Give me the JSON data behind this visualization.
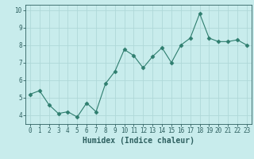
{
  "x": [
    0,
    1,
    2,
    3,
    4,
    5,
    6,
    7,
    8,
    9,
    10,
    11,
    12,
    13,
    14,
    15,
    16,
    17,
    18,
    19,
    20,
    21,
    22,
    23
  ],
  "y": [
    5.2,
    5.4,
    4.6,
    4.1,
    4.2,
    3.9,
    4.7,
    4.2,
    5.8,
    6.5,
    7.75,
    7.4,
    6.7,
    7.35,
    7.85,
    7.0,
    8.0,
    8.4,
    9.8,
    8.4,
    8.2,
    8.2,
    8.3,
    8.0
  ],
  "line_color": "#2e7d6e",
  "marker": "D",
  "marker_size": 2.5,
  "bg_color": "#c8ecec",
  "grid_color": "#afd8d8",
  "axis_color": "#2e6060",
  "xlabel": "Humidex (Indice chaleur)",
  "xlabel_fontsize": 7,
  "ylim": [
    3.5,
    10.3
  ],
  "xlim": [
    -0.5,
    23.5
  ],
  "yticks": [
    4,
    5,
    6,
    7,
    8,
    9,
    10
  ],
  "xticks": [
    0,
    1,
    2,
    3,
    4,
    5,
    6,
    7,
    8,
    9,
    10,
    11,
    12,
    13,
    14,
    15,
    16,
    17,
    18,
    19,
    20,
    21,
    22,
    23
  ],
  "tick_fontsize": 5.5
}
